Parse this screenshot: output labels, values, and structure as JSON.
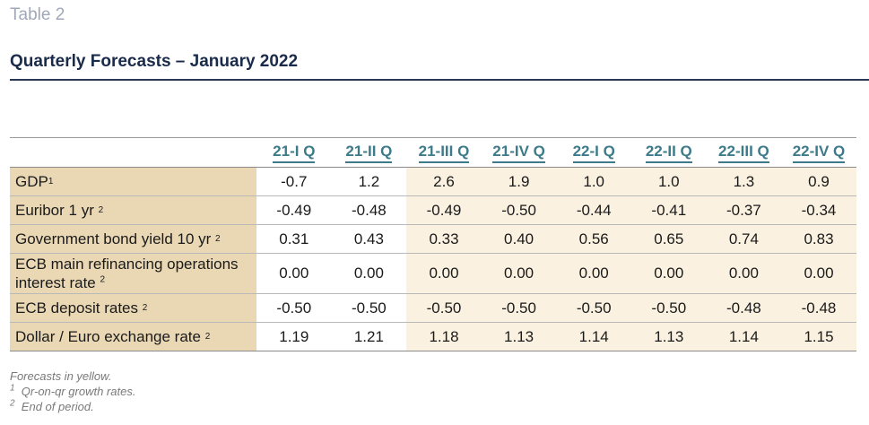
{
  "table_label": "Table 2",
  "title": "Quarterly Forecasts – January 2022",
  "columns": [
    "21-I Q",
    "21-II Q",
    "21-III Q",
    "21-IV Q",
    "22-I Q",
    "22-II Q",
    "22-III Q",
    "22-IV Q"
  ],
  "rows": [
    {
      "label": "GDP",
      "sup": "1",
      "values": [
        "-0.7",
        "1.2",
        "2.6",
        "1.9",
        "1.0",
        "1.0",
        "1.3",
        "0.9"
      ]
    },
    {
      "label": "Euribor 1 yr",
      "sup": "2",
      "values": [
        "-0.49",
        "-0.48",
        "-0.49",
        "-0.50",
        "-0.44",
        "-0.41",
        "-0.37",
        "-0.34"
      ]
    },
    {
      "label": "Government bond yield 10 yr",
      "sup": "2",
      "values": [
        "0.31",
        "0.43",
        "0.33",
        "0.40",
        "0.56",
        "0.65",
        "0.74",
        "0.83"
      ]
    },
    {
      "label": "ECB main refinancing operations interest rate",
      "sup": "2",
      "values": [
        "0.00",
        "0.00",
        "0.00",
        "0.00",
        "0.00",
        "0.00",
        "0.00",
        "0.00"
      ]
    },
    {
      "label": "ECB deposit rates",
      "sup": "2",
      "values": [
        "-0.50",
        "-0.50",
        "-0.50",
        "-0.50",
        "-0.50",
        "-0.50",
        "-0.48",
        "-0.48"
      ]
    },
    {
      "label": "Dollar / Euro exchange rate",
      "sup": "2",
      "values": [
        "1.19",
        "1.21",
        "1.18",
        "1.13",
        "1.14",
        "1.13",
        "1.14",
        "1.15"
      ]
    }
  ],
  "notes": {
    "forecast": "Forecasts in yellow.",
    "note1_sup": "1",
    "note1": "Qr-on-qr growth rates.",
    "note2_sup": "2",
    "note2": "End of period."
  },
  "colors": {
    "label_bg": "#ead8b5",
    "forecast_bg": "#fbf1e0",
    "header_text": "#3d7a8a",
    "title_text": "#1a2a4a"
  }
}
